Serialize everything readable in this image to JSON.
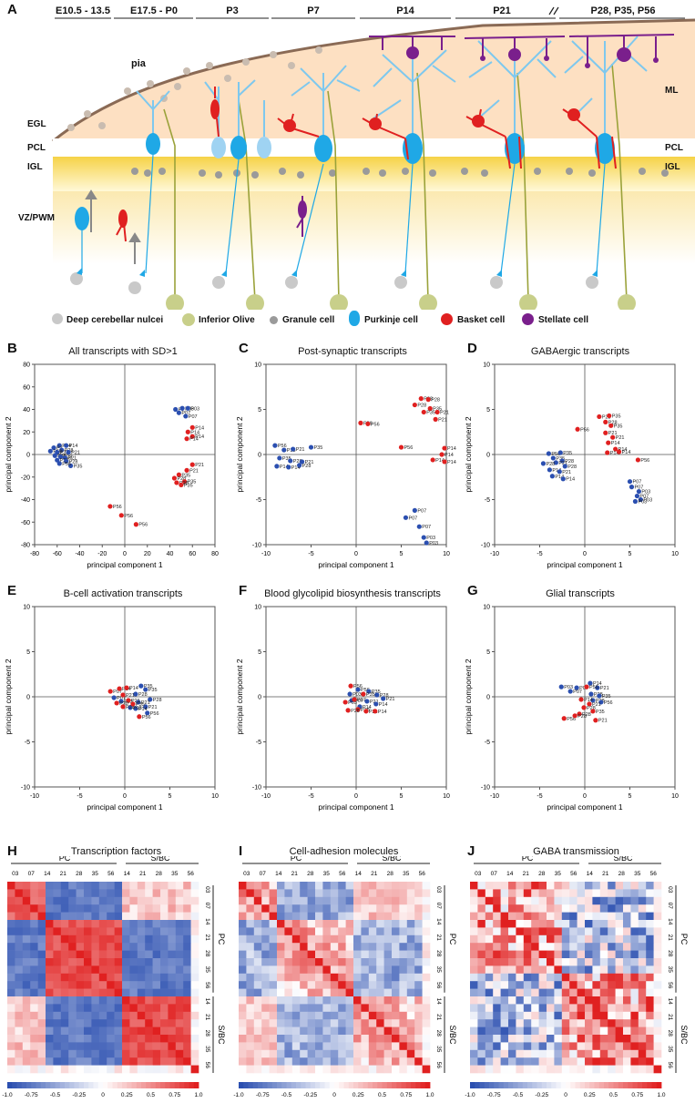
{
  "panel_letters": [
    "A",
    "B",
    "C",
    "D",
    "E",
    "F",
    "G",
    "H",
    "I",
    "J"
  ],
  "schematic": {
    "stages": [
      "E10.5 - 13.5",
      "E17.5 - P0",
      "P3",
      "P7",
      "P14",
      "P21",
      "P28, P35, P56"
    ],
    "labels": {
      "pia": "pia",
      "egl": "EGL",
      "pcl_left": "PCL",
      "igl_left": "IGL",
      "vz": "VZ/PWM",
      "ml": "ML",
      "pcl_right": "PCL",
      "igl_right": "IGL"
    },
    "legend": [
      "Deep cerebellar nulcei",
      "Inferior Olive",
      "Granule cell",
      "Purkinje cell",
      "Basket cell",
      "Stellate cell"
    ],
    "colors": {
      "dcn": "#c9c9c9",
      "io": "#c8cf8a",
      "granule": "#9a9a9a",
      "purkinje": "#1fa8e6",
      "basket": "#e02020",
      "stellate": "#7a1f8c"
    }
  },
  "axis": {
    "x": "principal component 1",
    "y": "principal component 2"
  },
  "chart_data": [
    {
      "type": "scatter",
      "id": "B",
      "title": "All transcripts with SD>1",
      "xlim": [
        -80,
        80
      ],
      "ylim": [
        -80,
        80
      ],
      "xticks": [
        -80,
        -60,
        -40,
        -20,
        0,
        20,
        40,
        60,
        80
      ],
      "yticks": [
        -80,
        -60,
        -40,
        -20,
        0,
        20,
        40,
        60,
        80
      ],
      "series": [
        {
          "name": "PC",
          "color": "#2b4fb0",
          "points": [
            [
              -58,
              8,
              "P14"
            ],
            [
              -52,
              8,
              "P14"
            ],
            [
              -63,
              6,
              "P1"
            ],
            [
              -56,
              4,
              "P28"
            ],
            [
              -66,
              3,
              "P56"
            ],
            [
              -60,
              2,
              "P35"
            ],
            [
              -50,
              2,
              "P21"
            ],
            [
              -62,
              -1,
              "P35"
            ],
            [
              -57,
              -2,
              "P28"
            ],
            [
              -53,
              -3,
              "P21"
            ],
            [
              -60,
              -5,
              "P28"
            ],
            [
              -52,
              -6,
              "P28"
            ],
            [
              -48,
              -10,
              "P35"
            ],
            [
              -58,
              -8,
              "P56"
            ],
            [
              45,
              40,
              "P7"
            ],
            [
              51,
              41,
              "P03"
            ],
            [
              56,
              41,
              "P03"
            ],
            [
              48,
              37,
              "P07"
            ],
            [
              54,
              34,
              "P07"
            ]
          ]
        },
        {
          "name": "S/BC",
          "color": "#e02020",
          "points": [
            [
              60,
              24,
              "P14"
            ],
            [
              56,
              20,
              "P14"
            ],
            [
              60,
              16,
              "P14"
            ],
            [
              55,
              14,
              "P14"
            ],
            [
              60,
              -9,
              "P21"
            ],
            [
              55,
              -14,
              "P21"
            ],
            [
              48,
              -18,
              "P35"
            ],
            [
              44,
              -21,
              "P28"
            ],
            [
              53,
              -24,
              "P35"
            ],
            [
              46,
              -25,
              "P28"
            ],
            [
              50,
              -27,
              "P35"
            ],
            [
              -13,
              -46,
              "P56"
            ],
            [
              -3,
              -54,
              "P56"
            ],
            [
              10,
              -62,
              "P56"
            ]
          ]
        }
      ]
    },
    {
      "type": "scatter",
      "id": "C",
      "title": "Post-synaptic transcripts",
      "xlim": [
        -10,
        10
      ],
      "ylim": [
        -10,
        10
      ],
      "xticks": [
        -10,
        -5,
        0,
        5,
        10
      ],
      "yticks": [
        -10,
        -5,
        0,
        5,
        10
      ],
      "series": [
        {
          "name": "PC",
          "color": "#2b4fb0",
          "points": [
            [
              -9,
              1,
              "P56"
            ],
            [
              -8,
              0.5,
              "P35"
            ],
            [
              -7,
              0.6,
              "P21"
            ],
            [
              -5,
              0.8,
              "P35"
            ],
            [
              -8.5,
              -0.4,
              "P35"
            ],
            [
              -7.3,
              -0.7,
              "P28"
            ],
            [
              -6,
              -0.8,
              "P21"
            ],
            [
              -8.8,
              -1.3,
              "P14"
            ],
            [
              -7.5,
              -1.4,
              "P14"
            ],
            [
              -6.3,
              -1.2,
              "P28"
            ],
            [
              6.5,
              -6.2,
              "P07"
            ],
            [
              5.5,
              -7,
              "P07"
            ],
            [
              7,
              -8,
              "P07"
            ],
            [
              7.5,
              -9.2,
              "P03"
            ],
            [
              7.8,
              -9.8,
              "P03"
            ]
          ]
        },
        {
          "name": "S/BC",
          "color": "#e02020",
          "points": [
            [
              0.5,
              3.5,
              "P56"
            ],
            [
              1.3,
              3.4,
              "P56"
            ],
            [
              7.2,
              6.2,
              "P28"
            ],
            [
              8,
              6.1,
              "P28"
            ],
            [
              6.5,
              5.5,
              "P28"
            ],
            [
              8.2,
              5.1,
              "P35"
            ],
            [
              7.5,
              4.7,
              "P35"
            ],
            [
              9,
              4.7,
              "P21"
            ],
            [
              8.8,
              3.9,
              "P21"
            ],
            [
              5,
              0.8,
              "P56"
            ],
            [
              9.8,
              0.7,
              "P14"
            ],
            [
              9.5,
              0,
              "P14"
            ],
            [
              8.5,
              -0.6,
              "P14"
            ],
            [
              9.9,
              -0.8,
              "P14"
            ]
          ]
        }
      ]
    },
    {
      "type": "scatter",
      "id": "D",
      "title": "GABAergic transcripts",
      "xlim": [
        -10,
        10
      ],
      "ylim": [
        -10,
        10
      ],
      "xticks": [
        -10,
        -5,
        0,
        5,
        10
      ],
      "yticks": [
        -10,
        -5,
        0,
        5,
        10
      ],
      "series": [
        {
          "name": "PC",
          "color": "#2b4fb0",
          "points": [
            [
              -4,
              0.1,
              "P56"
            ],
            [
              -2.7,
              0.2,
              "P35"
            ],
            [
              -3.5,
              -0.4,
              "P35"
            ],
            [
              -2.5,
              -0.7,
              "P28"
            ],
            [
              -3.2,
              -0.9,
              "P21"
            ],
            [
              -4.6,
              -1,
              "P28"
            ],
            [
              -2.2,
              -1.3,
              "P28"
            ],
            [
              -3.9,
              -1.7,
              "P14"
            ],
            [
              -2.8,
              -1.9,
              "P21"
            ],
            [
              -3.6,
              -2.4,
              "P14"
            ],
            [
              -2.4,
              -2.7,
              "P14"
            ],
            [
              5,
              -3,
              "P07"
            ],
            [
              5.2,
              -3.6,
              "P07"
            ],
            [
              6,
              -4.1,
              "P03"
            ],
            [
              5.8,
              -4.6,
              "P07"
            ],
            [
              6.2,
              -5,
              "P03"
            ],
            [
              5.6,
              -5.2,
              "P03"
            ]
          ]
        },
        {
          "name": "S/BC",
          "color": "#e02020",
          "points": [
            [
              -0.8,
              2.8,
              "P56"
            ],
            [
              1.6,
              4.2,
              "P28"
            ],
            [
              2.7,
              4.3,
              "P35"
            ],
            [
              2.3,
              3.6,
              "P28"
            ],
            [
              2.9,
              3.2,
              "P35"
            ],
            [
              2.3,
              2.4,
              "P21"
            ],
            [
              3.1,
              1.9,
              "P21"
            ],
            [
              2.6,
              1.3,
              "P14"
            ],
            [
              3.4,
              0.6,
              "P14"
            ],
            [
              2.5,
              0.2,
              "P14"
            ],
            [
              3.8,
              0.3,
              "P14"
            ],
            [
              5.9,
              -0.6,
              "P56"
            ]
          ]
        }
      ]
    },
    {
      "type": "scatter",
      "id": "E",
      "title": "B-cell activation transcripts",
      "xlim": [
        -10,
        10
      ],
      "ylim": [
        -10,
        10
      ],
      "xticks": [
        -10,
        -5,
        0,
        5,
        10
      ],
      "yticks": [
        -10,
        -5,
        0,
        5,
        10
      ],
      "series": [
        {
          "name": "PC",
          "color": "#2b4fb0",
          "points": [
            [
              1.8,
              1.2,
              "P35"
            ],
            [
              2.3,
              0.8,
              "P35"
            ],
            [
              1.2,
              0.3,
              "P28"
            ],
            [
              2.8,
              -0.3,
              "P28"
            ],
            [
              1.5,
              -0.6,
              "P21"
            ],
            [
              2.3,
              -1.1,
              "P21"
            ],
            [
              2.5,
              -1.8,
              "P56"
            ],
            [
              1.2,
              -1.3,
              "P14"
            ],
            [
              -1.2,
              -0.1,
              "P07"
            ],
            [
              -0.4,
              -0.5,
              "P03"
            ],
            [
              0.6,
              -1.2,
              "P03"
            ]
          ]
        },
        {
          "name": "S/BC",
          "color": "#e02020",
          "points": [
            [
              -1.6,
              0.6,
              "P07"
            ],
            [
              -0.6,
              0.9,
              "P14"
            ],
            [
              0.2,
              1,
              "P14"
            ],
            [
              -0.2,
              0.2,
              "P21"
            ],
            [
              0.4,
              -0.4,
              "P21"
            ],
            [
              -0.9,
              -0.7,
              "P28"
            ],
            [
              -0.2,
              -1.1,
              "P28"
            ],
            [
              0.9,
              -0.8,
              "P35"
            ],
            [
              1.6,
              -2.2,
              "P56"
            ]
          ]
        }
      ]
    },
    {
      "type": "scatter",
      "id": "F",
      "title": "Blood glycolipid biosynthesis transcripts",
      "xlim": [
        -10,
        10
      ],
      "ylim": [
        -10,
        10
      ],
      "xticks": [
        -10,
        -5,
        0,
        5,
        10
      ],
      "yticks": [
        -10,
        -5,
        0,
        5,
        10
      ],
      "series": [
        {
          "name": "PC",
          "color": "#2b4fb0",
          "points": [
            [
              0.2,
              0.8,
              "P56"
            ],
            [
              1.4,
              0.6,
              "P35"
            ],
            [
              2.3,
              0.2,
              "P28"
            ],
            [
              3,
              -0.2,
              "P21"
            ],
            [
              1.2,
              -0.5,
              "P21"
            ],
            [
              2.2,
              -0.8,
              "P14"
            ],
            [
              0.4,
              -1.1,
              "P14"
            ],
            [
              -0.7,
              0.3,
              "P03"
            ],
            [
              -0.5,
              -0.4,
              "P07"
            ]
          ]
        },
        {
          "name": "S/BC",
          "color": "#e02020",
          "points": [
            [
              -0.6,
              1.2,
              "P56"
            ],
            [
              0.8,
              0.3,
              "P35"
            ],
            [
              -1.2,
              -0.6,
              "P03"
            ],
            [
              -0.2,
              -0.3,
              "P07"
            ],
            [
              0.2,
              -1.4,
              "P28"
            ],
            [
              1.1,
              -1.6,
              "P21"
            ],
            [
              2.1,
              -1.6,
              "P14"
            ],
            [
              -0.9,
              -1.5,
              "P28"
            ]
          ]
        }
      ]
    },
    {
      "type": "scatter",
      "id": "G",
      "title": "Glial transcripts",
      "xlim": [
        -10,
        10
      ],
      "ylim": [
        -10,
        10
      ],
      "xticks": [
        -10,
        -5,
        0,
        5,
        10
      ],
      "yticks": [
        -10,
        -5,
        0,
        5,
        10
      ],
      "series": [
        {
          "name": "PC",
          "color": "#2b4fb0",
          "points": [
            [
              -2.6,
              1.1,
              "P03"
            ],
            [
              -0.9,
              1,
              "P07"
            ],
            [
              0.6,
              1.5,
              "P14"
            ],
            [
              1.4,
              1,
              "P21"
            ],
            [
              0.7,
              0.3,
              "P28"
            ],
            [
              1.6,
              0.1,
              "P35"
            ],
            [
              0.9,
              -0.4,
              "P28"
            ],
            [
              1.8,
              -0.6,
              "P56"
            ],
            [
              -1.6,
              0.6,
              "P07"
            ]
          ]
        },
        {
          "name": "S/BC",
          "color": "#e02020",
          "points": [
            [
              0.2,
              1.1,
              "P56"
            ],
            [
              -0.4,
              -0.3,
              "P14"
            ],
            [
              0.5,
              -0.8,
              "P21"
            ],
            [
              -0.1,
              -1.2,
              "P28"
            ],
            [
              0.9,
              -1.6,
              "P35"
            ],
            [
              -0.6,
              -1.9,
              "P28"
            ],
            [
              -2.3,
              -2.4,
              "P56"
            ],
            [
              -1.1,
              -2.1,
              "P28"
            ],
            [
              1.2,
              -2.6,
              "P21"
            ]
          ]
        }
      ]
    },
    {
      "type": "heatmap",
      "id": "H",
      "title": "Transcription factors",
      "n": 25,
      "blocks": [
        5,
        10
      ],
      "pattern": "tf",
      "seed": 7
    },
    {
      "type": "heatmap",
      "id": "I",
      "title": "Cell-adhesion molecules",
      "n": 25,
      "blocks": [
        5,
        10
      ],
      "pattern": "cam",
      "seed": 13
    },
    {
      "type": "heatmap",
      "id": "J",
      "title": "GABA transmission",
      "n": 25,
      "blocks": [
        5,
        10
      ],
      "pattern": "gaba",
      "seed": 21
    }
  ],
  "heatmap_labels": {
    "top_pc": [
      "03",
      "07",
      "14",
      "21",
      "28",
      "35",
      "56"
    ],
    "top_sbc": [
      "14",
      "21",
      "28",
      "35",
      "56"
    ],
    "side": [
      "03",
      "07",
      "14",
      "21",
      "28",
      "35",
      "56",
      "14",
      "21",
      "28",
      "35",
      "56"
    ],
    "group_pc": "PC",
    "group_sbc": "S/BC"
  },
  "colorbar": {
    "ticks": [
      "-1.0",
      "-0.75",
      "-0.5",
      "-0.25",
      "0",
      "0.25",
      "0.5",
      "0.75",
      "1.0"
    ],
    "low": "#2b4fb0",
    "mid": "#ffffff",
    "high": "#e02020"
  }
}
